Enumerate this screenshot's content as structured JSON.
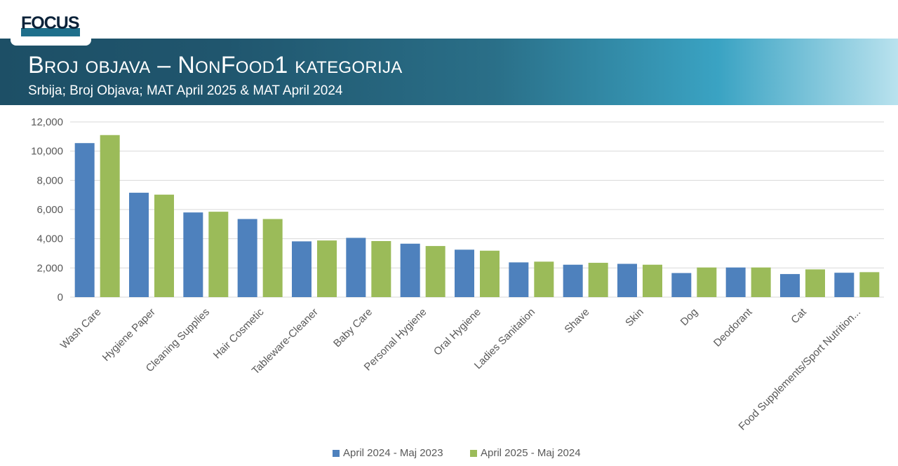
{
  "logo": {
    "text": "FOCUS"
  },
  "header": {
    "title": "Broj objava – NonFood1 kategorija",
    "subtitle": "Srbija; Broj Objava; MAT April 2025 & MAT April 2024"
  },
  "colors": {
    "series_1": "#4e81bd",
    "series_2": "#9bbb59",
    "gridline": "#d9d9d9",
    "axis_text": "#595959"
  },
  "chart_data": {
    "type": "bar",
    "title": "",
    "xlabel": "",
    "ylabel": "",
    "ylim": [
      0,
      12000
    ],
    "yticks": [
      0,
      2000,
      4000,
      6000,
      8000,
      10000,
      12000
    ],
    "ytick_labels": [
      "0",
      "2,000",
      "4,000",
      "6,000",
      "8,000",
      "10,000",
      "12,000"
    ],
    "grid": true,
    "legend_position": "bottom",
    "categories": [
      "Wash Care",
      "Hygiene Paper",
      "Cleaning Supplies",
      "Hair Cosmetic",
      "Tableware-Cleaner",
      "Baby Care",
      "Personal Hygiene",
      "Oral Hygiene",
      "Ladies Sanitation",
      "Shave",
      "Skin",
      "Dog",
      "Deodorant",
      "Cat",
      "Food Supplements/Sport Nutrition..."
    ],
    "series": [
      {
        "name": "April 2024 - Maj 2023",
        "color": "#4e81bd",
        "values": [
          10550,
          7150,
          5800,
          5350,
          3820,
          4060,
          3660,
          3250,
          2380,
          2220,
          2280,
          1650,
          2030,
          1580,
          1670
        ]
      },
      {
        "name": "April 2025 - Maj 2024",
        "color": "#9bbb59",
        "values": [
          11100,
          7020,
          5850,
          5350,
          3880,
          3840,
          3500,
          3180,
          2430,
          2350,
          2220,
          2030,
          2030,
          1900,
          1710
        ]
      }
    ]
  }
}
